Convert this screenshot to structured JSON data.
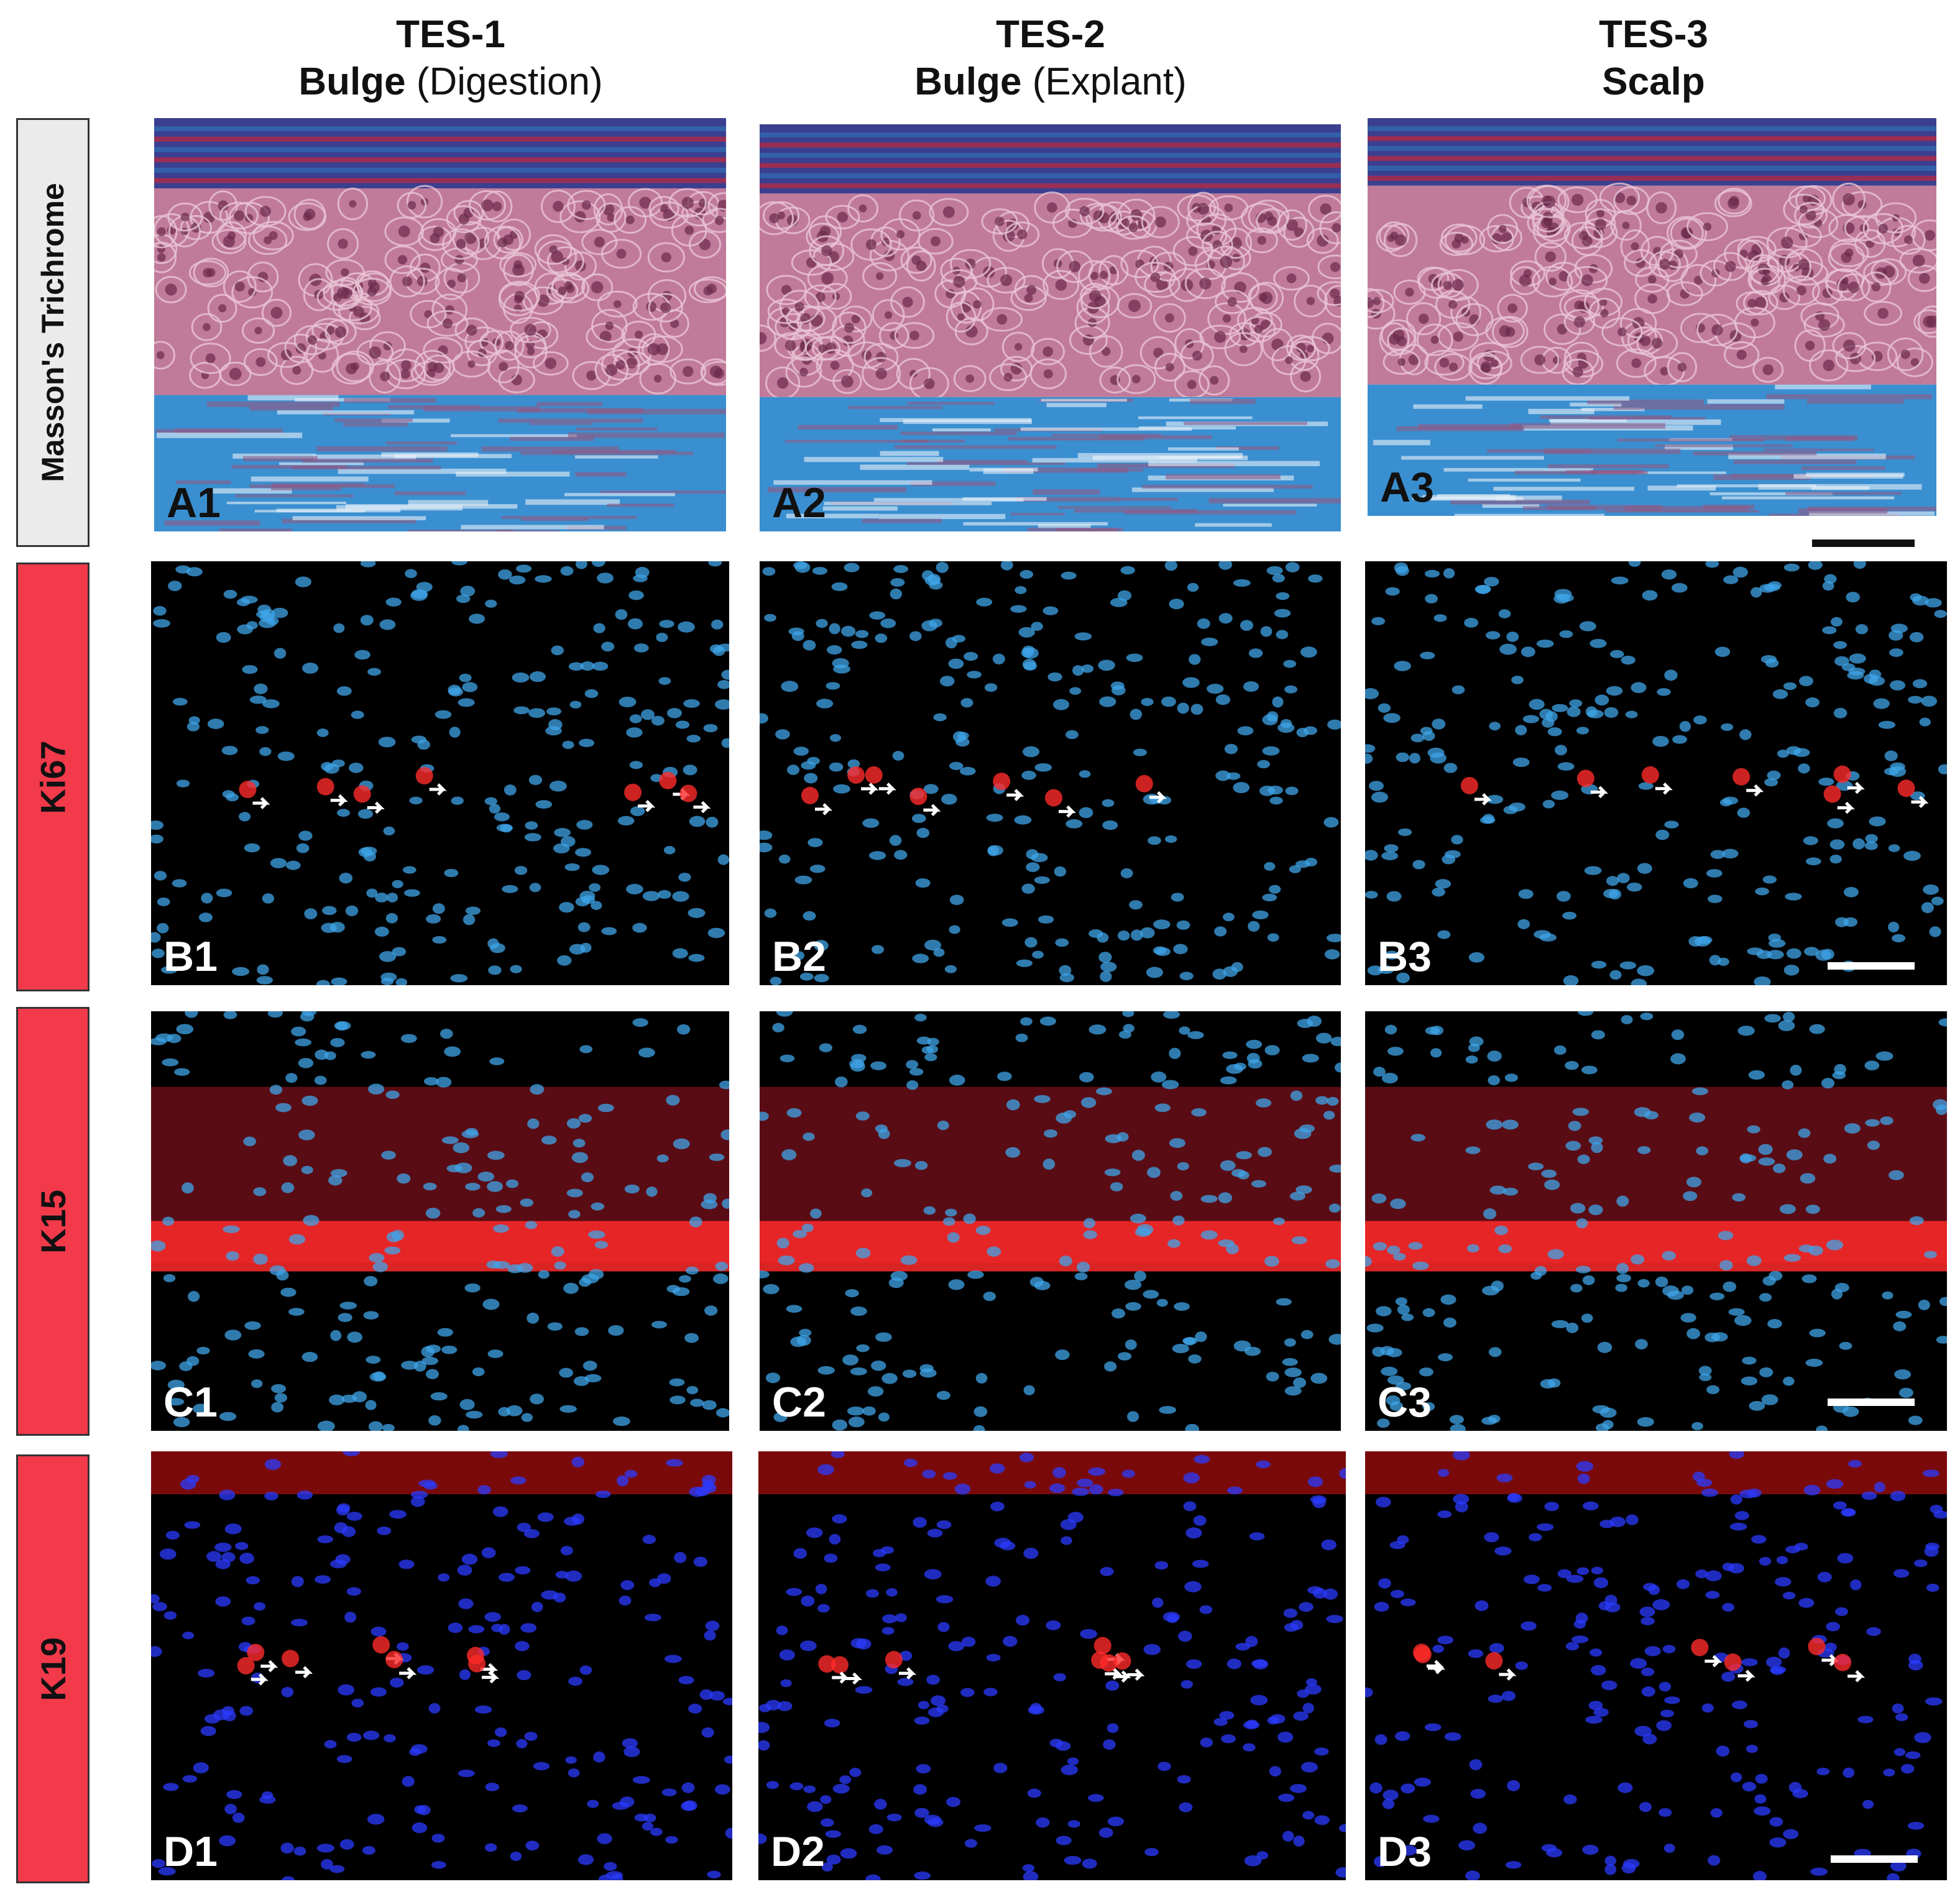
{
  "columns": [
    {
      "title": "TES-1",
      "sub_bold": "Bulge",
      "sub_plain": "(Digestion)"
    },
    {
      "title": "TES-2",
      "sub_bold": "Bulge",
      "sub_plain": "(Explant)"
    },
    {
      "title": "TES-3",
      "sub_bold": "Scalp",
      "sub_plain": ""
    }
  ],
  "rows": [
    {
      "label": "Masson's Trichrome",
      "stain": "trichrome",
      "panels": [
        "A1",
        "A2",
        "A3"
      ]
    },
    {
      "label": "Ki67",
      "stain": "ki67",
      "panels": [
        "B1",
        "B2",
        "B3"
      ]
    },
    {
      "label": "K15",
      "stain": "k15",
      "panels": [
        "C1",
        "C2",
        "C3"
      ]
    },
    {
      "label": "K19",
      "stain": "k19",
      "panels": [
        "D1",
        "D2",
        "D3"
      ]
    }
  ],
  "colors": {
    "row_label_red": "#f23a4b",
    "row_label_gray": "#ebebeb",
    "dermis_blue": "#3a8fd0",
    "epidermis_pink": "#c07a9a",
    "dapi_blue": "#3fa4e8",
    "marker_red": "#ff2a2a"
  }
}
